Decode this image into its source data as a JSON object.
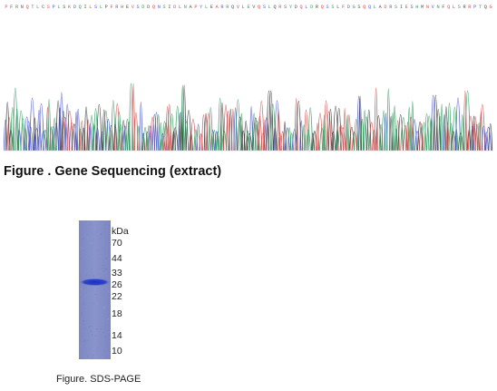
{
  "sequencing": {
    "caption": "Figure . Gene Sequencing (extract)",
    "base_call_text": "PFRNQTLCSPLSKDQILSLPFRHEVSDDQNSIDLNAPYLEARRQVLEVQSLQRSYDQLDRQSSLFDGSQQLADRSIESHMNVNFQLSRRPTQG",
    "base_call_colors": [
      "#d94f4f",
      "#5a5ad0",
      "#3b9a57",
      "#555555"
    ],
    "trace_colors": {
      "A": "#2e9b5e",
      "C": "#4a55c9",
      "G": "#3a3a3a",
      "T": "#d24a4a"
    }
  },
  "sds_page": {
    "caption": "Figure. SDS-PAGE",
    "unit": "kDa",
    "markers": [
      "70",
      "44",
      "33",
      "26",
      "22",
      "18",
      "14",
      "10"
    ]
  }
}
